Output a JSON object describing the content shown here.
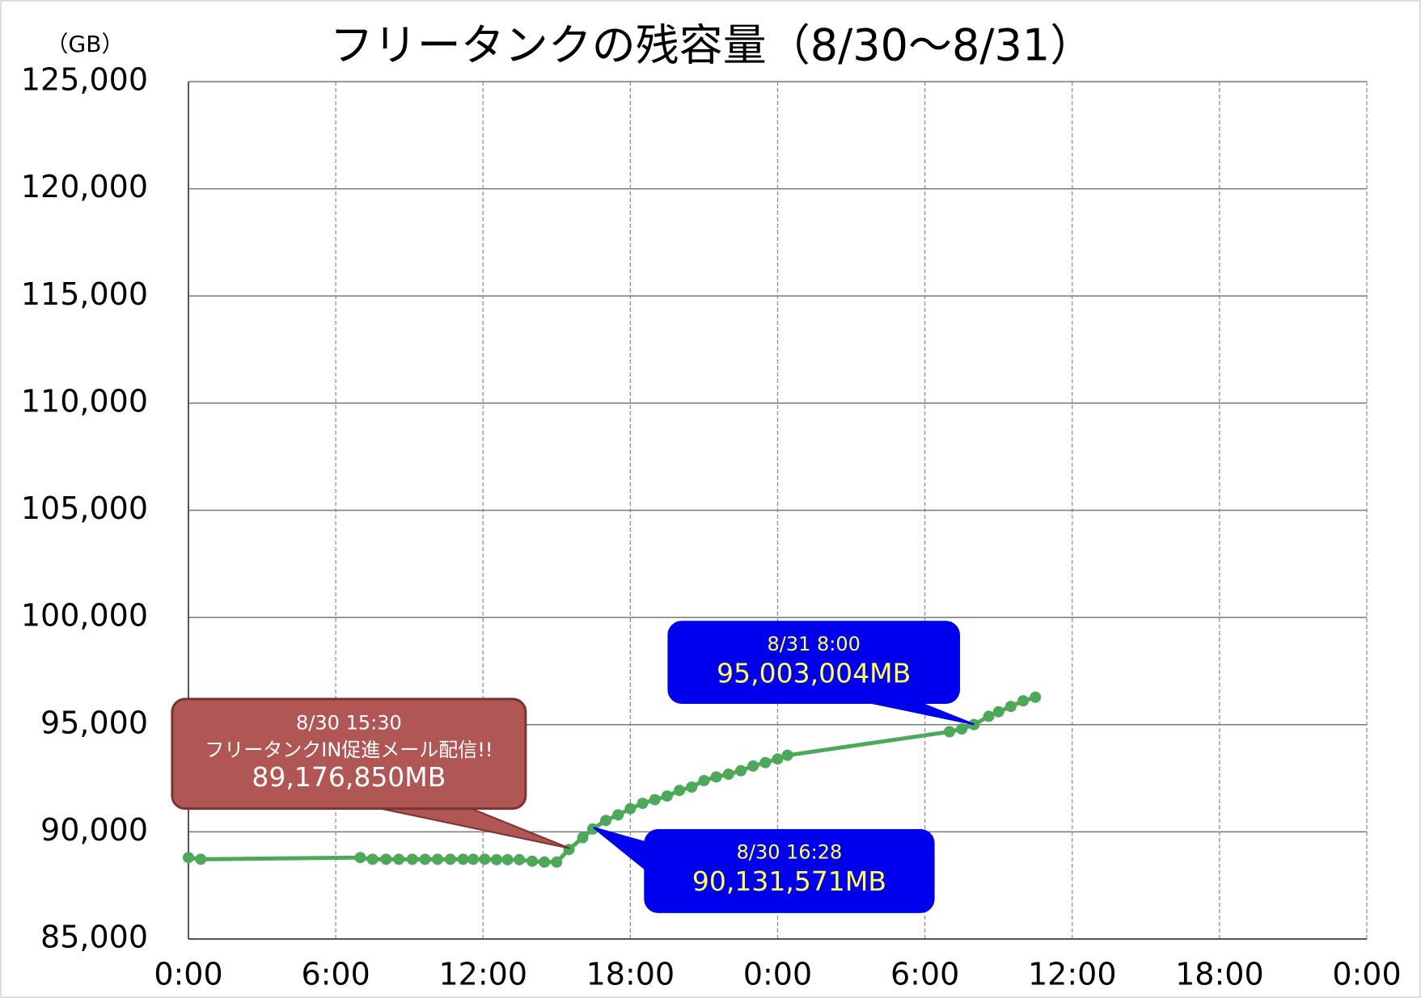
{
  "chart_data": {
    "type": "line",
    "title": "フリータンクの残容量（8/30～8/31）",
    "y_unit": "（GB）",
    "xlim": [
      0,
      48
    ],
    "xticks": [
      {
        "value": 0,
        "label": "0:00"
      },
      {
        "value": 6,
        "label": "6:00"
      },
      {
        "value": 12,
        "label": "12:00"
      },
      {
        "value": 18,
        "label": "18:00"
      },
      {
        "value": 24,
        "label": "0:00"
      },
      {
        "value": 30,
        "label": "6:00"
      },
      {
        "value": 36,
        "label": "12:00"
      },
      {
        "value": 42,
        "label": "18:00"
      },
      {
        "value": 48,
        "label": "0:00"
      }
    ],
    "ylim": [
      85000,
      125000
    ],
    "yticks": [
      {
        "value": 85000,
        "label": "85,000"
      },
      {
        "value": 90000,
        "label": "90,000"
      },
      {
        "value": 95000,
        "label": "95,000"
      },
      {
        "value": 100000,
        "label": "100,000"
      },
      {
        "value": 105000,
        "label": "105,000"
      },
      {
        "value": 110000,
        "label": "110,000"
      },
      {
        "value": 115000,
        "label": "115,000"
      },
      {
        "value": 120000,
        "label": "120,000"
      },
      {
        "value": 125000,
        "label": "125,000"
      }
    ],
    "grid": true,
    "series": [
      {
        "color": "#4ea85a",
        "x": [
          0,
          0.5,
          7.0,
          7.5,
          8.05,
          8.57,
          9.12,
          9.64,
          10.15,
          10.67,
          11.19,
          11.6,
          12.07,
          12.55,
          13.0,
          13.48,
          14.0,
          14.5,
          15.0,
          15.5,
          16.06,
          16.47,
          17.0,
          17.5,
          18.0,
          18.5,
          19.0,
          19.5,
          20.0,
          20.5,
          21.0,
          21.5,
          22.0,
          22.5,
          23.0,
          23.5,
          24.0,
          24.4,
          31.0,
          31.5,
          32.0,
          32.6,
          33.0,
          33.5,
          34.0,
          34.5
        ],
        "values": [
          88800,
          88720,
          88800,
          88720,
          88720,
          88720,
          88720,
          88720,
          88720,
          88720,
          88720,
          88720,
          88720,
          88700,
          88700,
          88700,
          88630,
          88590,
          88590,
          89177,
          89730,
          90132,
          90530,
          90790,
          91080,
          91330,
          91500,
          91670,
          91930,
          92090,
          92390,
          92560,
          92690,
          92850,
          93070,
          93230,
          93400,
          93570,
          94670,
          94800,
          95003,
          95390,
          95600,
          95850,
          96110,
          96280
        ]
      }
    ],
    "annotations": [
      {
        "lines": [
          "8/30 15:30",
          "フリータンクIN促進メール配信!!",
          "89,176,850MB"
        ]
      },
      {
        "lines": [
          "8/31 8:00",
          "95,003,004MB"
        ]
      },
      {
        "lines": [
          "8/30 16:28",
          "90,131,571MB"
        ]
      }
    ]
  }
}
